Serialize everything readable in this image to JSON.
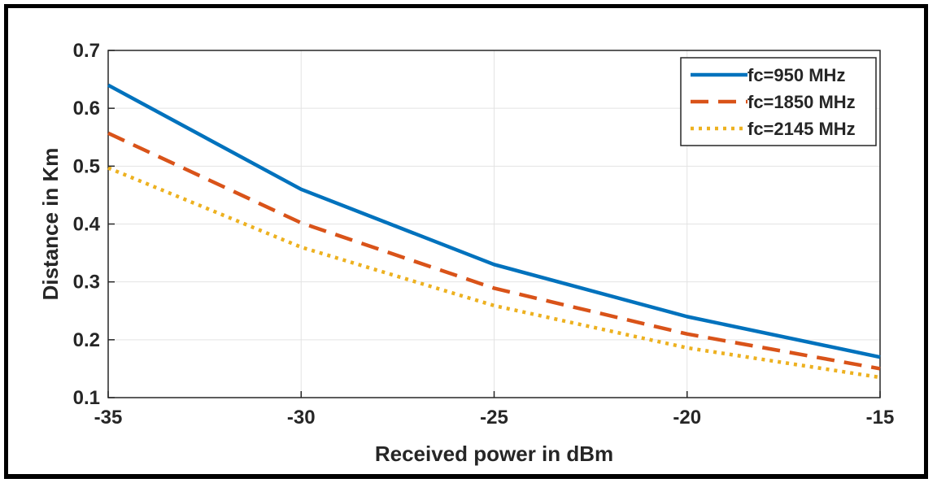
{
  "chart_data": {
    "type": "line",
    "xlabel": "Received power in dBm",
    "ylabel": "Distance in Km",
    "xlim": [
      -35,
      -15
    ],
    "ylim": [
      0.1,
      0.7
    ],
    "x_ticks": [
      "-35",
      "-30",
      "-25",
      "-20",
      "-15"
    ],
    "y_ticks": [
      "0.1",
      "0.2",
      "0.3",
      "0.4",
      "0.5",
      "0.6",
      "0.7"
    ],
    "grid": true,
    "legend_position": "top-right",
    "x": [
      -35,
      -30,
      -25,
      -20,
      -15
    ],
    "series": [
      {
        "name": "fc=950 MHz",
        "values": [
          0.64,
          0.46,
          0.33,
          0.24,
          0.17
        ],
        "color": "#0072BD",
        "style": "solid"
      },
      {
        "name": "fc=1850 MHz",
        "values": [
          0.557,
          0.402,
          0.289,
          0.21,
          0.15
        ],
        "color": "#D95319",
        "style": "dashed"
      },
      {
        "name": "fc=2145 MHz",
        "values": [
          0.497,
          0.36,
          0.259,
          0.186,
          0.135
        ],
        "color": "#EDB120",
        "style": "dotted"
      }
    ]
  }
}
